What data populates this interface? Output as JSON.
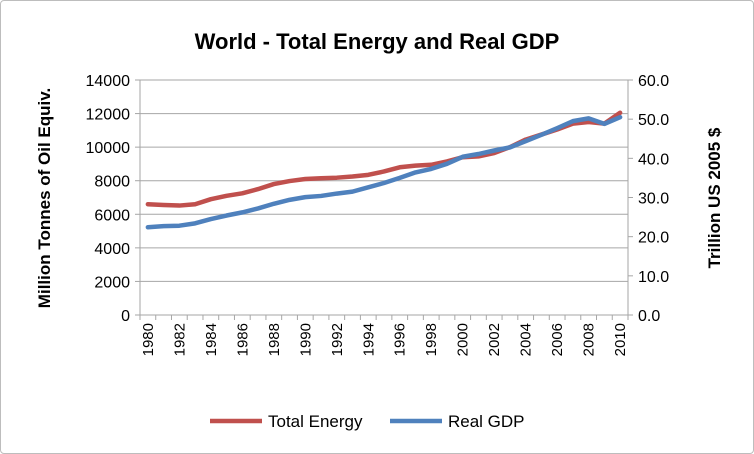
{
  "chart_data": {
    "type": "line",
    "title": "World - Total Energy and Real GDP",
    "ylabel": "Million Tonnes of Oil Equiv.",
    "y2label": "Trillion US 2005 $",
    "ylim": [
      0,
      14000
    ],
    "y2lim": [
      0,
      60
    ],
    "yticks": [
      "0",
      "2000",
      "4000",
      "6000",
      "8000",
      "10000",
      "12000",
      "14000"
    ],
    "y2ticks": [
      "0.0",
      "10.0",
      "20.0",
      "30.0",
      "40.0",
      "50.0",
      "60.0"
    ],
    "x": [
      1980,
      1981,
      1982,
      1983,
      1984,
      1985,
      1986,
      1987,
      1988,
      1989,
      1990,
      1991,
      1992,
      1993,
      1994,
      1995,
      1996,
      1997,
      1998,
      1999,
      2000,
      2001,
      2002,
      2003,
      2004,
      2005,
      2006,
      2007,
      2008,
      2009,
      2010
    ],
    "xticks": [
      "1980",
      "1982",
      "1984",
      "1986",
      "1988",
      "1990",
      "1992",
      "1994",
      "1996",
      "1998",
      "2000",
      "2002",
      "2004",
      "2006",
      "2008",
      "2010"
    ],
    "grid": true,
    "legend": "bottom",
    "series": [
      {
        "name": "Total Energy",
        "axis": "left",
        "color": "#c0504d",
        "values": [
          6600,
          6550,
          6520,
          6600,
          6900,
          7100,
          7250,
          7500,
          7800,
          7980,
          8100,
          8150,
          8180,
          8250,
          8350,
          8550,
          8800,
          8900,
          8950,
          9150,
          9400,
          9450,
          9650,
          10000,
          10450,
          10750,
          11050,
          11400,
          11500,
          11400,
          12050
        ]
      },
      {
        "name": "Real GDP",
        "axis": "right",
        "color": "#4f81bd",
        "values": [
          22.4,
          22.7,
          22.8,
          23.4,
          24.5,
          25.4,
          26.2,
          27.2,
          28.4,
          29.4,
          30.1,
          30.4,
          31.0,
          31.5,
          32.6,
          33.7,
          35.0,
          36.4,
          37.3,
          38.6,
          40.4,
          41.1,
          42.0,
          42.8,
          44.4,
          46.0,
          47.7,
          49.5,
          50.2,
          48.8,
          50.5
        ]
      }
    ]
  }
}
